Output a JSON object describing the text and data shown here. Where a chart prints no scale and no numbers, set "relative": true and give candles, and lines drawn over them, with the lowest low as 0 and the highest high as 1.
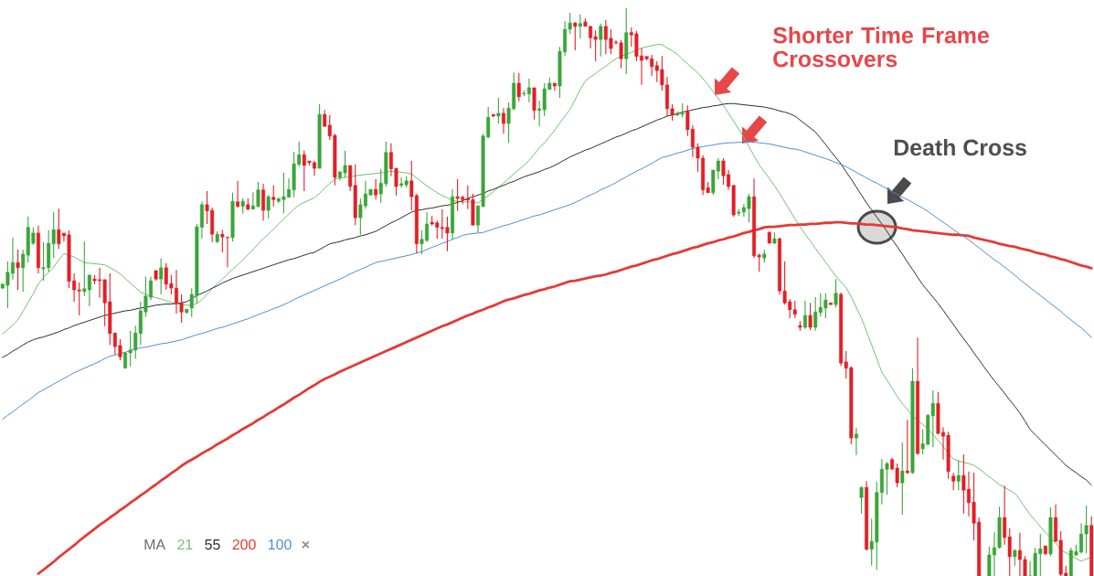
{
  "chart_data": {
    "type": "candlestick",
    "relative": true,
    "legend_title": "MA",
    "marker": "none",
    "line_style": "solid",
    "annotations": [
      "Shorter Time Frame Crossovers",
      "Death Cross",
      "×"
    ],
    "categories": [
      null,
      null,
      null,
      null,
      null,
      null,
      null,
      null,
      null,
      null,
      null,
      null,
      null,
      null,
      null,
      null,
      null,
      null,
      null,
      null,
      null,
      null,
      null,
      null,
      null,
      null,
      null,
      null,
      null,
      null,
      null,
      null,
      null,
      null,
      null,
      null,
      null,
      null,
      null,
      null,
      null,
      null,
      null,
      null,
      null,
      null,
      null,
      null,
      null,
      null,
      null,
      null,
      null,
      null,
      null,
      null,
      null,
      null,
      null,
      null,
      null,
      null,
      null,
      null,
      null,
      null,
      null,
      null,
      null,
      null,
      null,
      null,
      null,
      null,
      null,
      null,
      null,
      null,
      null,
      null,
      null,
      null,
      null,
      null,
      null,
      null,
      null,
      null,
      null,
      null,
      null,
      null,
      null,
      null,
      null,
      null,
      null,
      null,
      null,
      null,
      null,
      null,
      null,
      null,
      null,
      null,
      null,
      null,
      null,
      null,
      null,
      null,
      null,
      null,
      null,
      null,
      null,
      null,
      null,
      null,
      null,
      null,
      null,
      null,
      null,
      null,
      null,
      null,
      null,
      null,
      null,
      null,
      null,
      null,
      null,
      null,
      null,
      null,
      null,
      null,
      null,
      null,
      null,
      null,
      null,
      null,
      null,
      null,
      null,
      null,
      null,
      null,
      null,
      null,
      null,
      null,
      null,
      null,
      null,
      null,
      null,
      null,
      null,
      null,
      null,
      null,
      null,
      null,
      null,
      null,
      null,
      null,
      null,
      null,
      null,
      null,
      null,
      null,
      null,
      null,
      null,
      null,
      null,
      null,
      null,
      null,
      null,
      null,
      null,
      null,
      null,
      null,
      null,
      null,
      null,
      null,
      null,
      null,
      null,
      null,
      null,
      null,
      null,
      null,
      null,
      null,
      null,
      null,
      null,
      null,
      null,
      null,
      null,
      null
    ],
    "ohlc": [
      [
        0.507,
        0.515,
        0.506,
        0.514
      ],
      [
        0.512,
        0.554,
        0.472,
        0.535
      ],
      [
        0.533,
        0.596,
        0.522,
        0.552
      ],
      [
        0.552,
        0.575,
        0.504,
        0.543
      ],
      [
        0.543,
        0.575,
        0.501,
        0.567
      ],
      [
        0.565,
        0.633,
        0.552,
        0.614
      ],
      [
        0.586,
        0.614,
        0.583,
        0.604
      ],
      [
        0.604,
        0.617,
        0.533,
        0.543
      ],
      [
        0.541,
        0.588,
        0.52,
        0.543
      ],
      [
        0.543,
        0.609,
        0.536,
        0.586
      ],
      [
        0.585,
        0.641,
        0.56,
        0.61
      ],
      [
        0.61,
        0.647,
        0.576,
        0.585
      ],
      [
        0.604,
        0.604,
        0.589,
        0.599
      ],
      [
        0.601,
        0.609,
        0.507,
        0.519
      ],
      [
        0.52,
        0.533,
        0.483,
        0.504
      ],
      [
        0.504,
        0.517,
        0.459,
        0.502
      ],
      [
        0.501,
        0.589,
        0.493,
        0.506
      ],
      [
        0.504,
        0.53,
        0.475,
        0.53
      ],
      [
        0.523,
        0.53,
        0.514,
        0.52
      ],
      [
        0.522,
        0.543,
        0.49,
        0.52
      ],
      [
        0.522,
        0.522,
        0.44,
        0.481
      ],
      [
        0.483,
        0.533,
        0.407,
        0.427
      ],
      [
        0.428,
        0.428,
        0.39,
        0.404
      ],
      [
        0.406,
        0.417,
        0.38,
        0.386
      ],
      [
        0.366,
        0.393,
        0.366,
        0.393
      ],
      [
        0.393,
        0.432,
        0.369,
        0.398
      ],
      [
        0.398,
        0.441,
        0.383,
        0.428
      ],
      [
        0.427,
        0.483,
        0.407,
        0.467
      ],
      [
        0.465,
        0.527,
        0.456,
        0.493
      ],
      [
        0.491,
        0.527,
        0.486,
        0.52
      ],
      [
        0.538,
        0.538,
        0.52,
        0.523
      ],
      [
        0.523,
        0.559,
        0.496,
        0.543
      ],
      [
        0.543,
        0.551,
        0.504,
        0.514
      ],
      [
        0.515,
        0.53,
        0.496,
        0.507
      ],
      [
        0.507,
        0.539,
        0.462,
        0.481
      ],
      [
        0.481,
        0.496,
        0.446,
        0.465
      ],
      [
        0.464,
        0.47,
        0.462,
        0.47
      ],
      [
        0.472,
        0.507,
        0.456,
        0.496
      ],
      [
        0.494,
        0.62,
        0.48,
        0.615
      ],
      [
        0.614,
        0.66,
        0.594,
        0.654
      ],
      [
        0.654,
        0.678,
        0.62,
        0.643
      ],
      [
        0.644,
        0.649,
        0.588,
        0.602
      ],
      [
        0.589,
        0.607,
        0.586,
        0.602
      ],
      [
        0.602,
        0.61,
        0.57,
        0.597
      ],
      [
        0.597,
        0.597,
        0.544,
        0.596
      ],
      [
        0.596,
        0.675,
        0.589,
        0.66
      ],
      [
        0.659,
        0.696,
        0.649,
        0.651
      ],
      [
        0.651,
        0.665,
        0.638,
        0.66
      ],
      [
        0.654,
        0.665,
        0.644,
        0.646
      ],
      [
        0.646,
        0.676,
        0.646,
        0.652
      ],
      [
        0.651,
        0.694,
        0.649,
        0.68
      ],
      [
        0.68,
        0.691,
        0.626,
        0.644
      ],
      [
        0.644,
        0.671,
        0.63,
        0.668
      ],
      [
        0.667,
        0.688,
        0.651,
        0.663
      ],
      [
        0.66,
        0.665,
        0.657,
        0.665
      ],
      [
        0.663,
        0.71,
        0.639,
        0.668
      ],
      [
        0.667,
        0.7,
        0.667,
        0.681
      ],
      [
        0.68,
        0.747,
        0.667,
        0.726
      ],
      [
        0.725,
        0.765,
        0.721,
        0.742
      ],
      [
        0.742,
        0.749,
        0.678,
        0.723
      ],
      [
        0.731,
        0.731,
        0.723,
        0.728
      ],
      [
        0.728,
        0.731,
        0.705,
        0.718
      ],
      [
        0.718,
        0.831,
        0.718,
        0.813
      ],
      [
        0.813,
        0.821,
        0.791,
        0.792
      ],
      [
        0.794,
        0.812,
        0.768,
        0.775
      ],
      [
        0.776,
        0.779,
        0.688,
        0.702
      ],
      [
        0.702,
        0.712,
        0.697,
        0.712
      ],
      [
        0.71,
        0.749,
        0.702,
        0.723
      ],
      [
        0.723,
        0.723,
        0.678,
        0.686
      ],
      [
        0.688,
        0.725,
        0.618,
        0.631
      ],
      [
        0.631,
        0.665,
        0.601,
        0.654
      ],
      [
        0.652,
        0.696,
        0.647,
        0.673
      ],
      [
        0.671,
        0.681,
        0.671,
        0.681
      ],
      [
        0.681,
        0.699,
        0.663,
        0.671
      ],
      [
        0.673,
        0.717,
        0.657,
        0.692
      ],
      [
        0.691,
        0.765,
        0.686,
        0.746
      ],
      [
        0.746,
        0.762,
        0.704,
        0.717
      ],
      [
        0.718,
        0.718,
        0.67,
        0.686
      ],
      [
        0.688,
        0.702,
        0.684,
        0.691
      ],
      [
        0.689,
        0.704,
        0.684,
        0.696
      ],
      [
        0.696,
        0.731,
        0.644,
        0.668
      ],
      [
        0.67,
        0.673,
        0.568,
        0.585
      ],
      [
        0.585,
        0.609,
        0.567,
        0.593
      ],
      [
        0.591,
        0.641,
        0.588,
        0.62
      ],
      [
        0.623,
        0.634,
        0.617,
        0.62
      ],
      [
        0.622,
        0.626,
        0.594,
        0.614
      ],
      [
        0.614,
        0.646,
        0.594,
        0.612
      ],
      [
        0.614,
        0.633,
        0.572,
        0.604
      ],
      [
        0.604,
        0.681,
        0.593,
        0.668
      ],
      [
        0.668,
        0.699,
        0.643,
        0.665
      ],
      [
        0.667,
        0.67,
        0.655,
        0.663
      ],
      [
        0.665,
        0.688,
        0.646,
        0.662
      ],
      [
        0.663,
        0.673,
        0.617,
        0.618
      ],
      [
        0.618,
        0.652,
        0.605,
        0.652
      ],
      [
        0.651,
        0.779,
        0.649,
        0.775
      ],
      [
        0.773,
        0.826,
        0.771,
        0.808
      ],
      [
        0.813,
        0.813,
        0.808,
        0.81
      ],
      [
        0.81,
        0.842,
        0.797,
        0.815
      ],
      [
        0.815,
        0.824,
        0.779,
        0.797
      ],
      [
        0.797,
        0.834,
        0.763,
        0.824
      ],
      [
        0.823,
        0.887,
        0.82,
        0.868
      ],
      [
        0.868,
        0.886,
        0.836,
        0.844
      ],
      [
        0.849,
        0.855,
        0.845,
        0.85
      ],
      [
        0.849,
        0.876,
        0.834,
        0.86
      ],
      [
        0.86,
        0.86,
        0.804,
        0.82
      ],
      [
        0.82,
        0.837,
        0.792,
        0.823
      ],
      [
        0.821,
        0.868,
        0.81,
        0.858
      ],
      [
        0.857,
        0.878,
        0.857,
        0.868
      ],
      [
        0.868,
        0.868,
        0.855,
        0.863
      ],
      [
        0.863,
        0.932,
        0.842,
        0.924
      ],
      [
        0.923,
        0.977,
        0.916,
        0.963
      ],
      [
        0.963,
        0.992,
        0.955,
        0.974
      ],
      [
        0.974,
        0.976,
        0.926,
        0.968
      ],
      [
        0.968,
        0.989,
        0.947,
        0.973
      ],
      [
        0.976,
        0.982,
        0.968,
        0.968
      ],
      [
        0.968,
        0.969,
        0.929,
        0.948
      ],
      [
        0.95,
        0.961,
        0.907,
        0.945
      ],
      [
        0.945,
        0.973,
        0.915,
        0.968
      ],
      [
        0.968,
        0.979,
        0.919,
        0.945
      ],
      [
        0.947,
        0.963,
        0.919,
        0.929
      ],
      [
        0.94,
        0.944,
        0.936,
        0.939
      ],
      [
        0.939,
        0.944,
        0.894,
        0.911
      ],
      [
        0.911,
        1,
        0.884,
        0.957
      ],
      [
        0.957,
        0.966,
        0.932,
        0.953
      ],
      [
        0.955,
        0.96,
        0.907,
        0.915
      ],
      [
        0.916,
        0.929,
        0.865,
        0.908
      ],
      [
        0.915,
        0.915,
        0.908,
        0.911
      ],
      [
        0.911,
        0.918,
        0.881,
        0.897
      ],
      [
        0.899,
        0.907,
        0.87,
        0.89
      ],
      [
        0.892,
        0.916,
        0.855,
        0.865
      ],
      [
        0.865,
        0.879,
        0.81,
        0.823
      ],
      [
        0.823,
        0.831,
        0.802,
        0.812
      ],
      [
        0.812,
        0.818,
        0.81,
        0.815
      ],
      [
        0.813,
        0.833,
        0.808,
        0.815
      ],
      [
        0.818,
        0.829,
        0.775,
        0.786
      ],
      [
        0.787,
        0.794,
        0.738,
        0.755
      ],
      [
        0.755,
        0.762,
        0.712,
        0.736
      ],
      [
        0.736,
        0.741,
        0.671,
        0.68
      ],
      [
        0.684,
        0.694,
        0.675,
        0.675
      ],
      [
        0.675,
        0.715,
        0.671,
        0.715
      ],
      [
        0.713,
        0.736,
        0.699,
        0.731
      ],
      [
        0.731,
        0.736,
        0.689,
        0.705
      ],
      [
        0.707,
        0.715,
        0.68,
        0.686
      ],
      [
        0.688,
        0.688,
        0.633,
        0.636
      ],
      [
        0.639,
        0.646,
        0.634,
        0.641
      ],
      [
        0.641,
        0.655,
        0.633,
        0.649
      ],
      [
        0.647,
        0.673,
        0.623,
        0.668
      ],
      [
        0.668,
        0.7,
        0.56,
        0.564
      ],
      [
        0.565,
        0.568,
        0.536,
        0.562
      ],
      [
        0.56,
        0.575,
        0.552,
        0.567
      ],
      [
        0.605,
        0.607,
        0.586,
        0.586
      ],
      [
        0.586,
        0.605,
        0.585,
        0.594
      ],
      [
        0.594,
        0.596,
        0.496,
        0.502
      ],
      [
        0.502,
        0.554,
        0.478,
        0.481
      ],
      [
        0.483,
        0.488,
        0.454,
        0.469
      ],
      [
        0.469,
        0.485,
        0.454,
        0.461
      ],
      [
        0.441,
        0.449,
        0.432,
        0.438
      ],
      [
        0.438,
        0.485,
        0.435,
        0.459
      ],
      [
        0.459,
        0.481,
        0.433,
        0.438
      ],
      [
        0.438,
        0.491,
        0.432,
        0.465
      ],
      [
        0.464,
        0.498,
        0.457,
        0.473
      ],
      [
        0.472,
        0.498,
        0.454,
        0.486
      ],
      [
        0.481,
        0.481,
        0.478,
        0.478
      ],
      [
        0.478,
        0.523,
        0.473,
        0.498
      ],
      [
        0.496,
        0.499,
        0.37,
        0.375
      ],
      [
        0.377,
        0.396,
        0.348,
        0.366
      ],
      [
        0.367,
        0.369,
        0.232,
        0.243
      ],
      [
        0.243,
        0.261,
        0.213,
        0.25
      ],
      [
        0.138,
        0.158,
        0.11,
        0.156
      ],
      [
        0.156,
        0.167,
        0.045,
        0.047
      ],
      [
        0.047,
        0.101,
        0.018,
        0.061
      ],
      [
        0.06,
        0.166,
        0.011,
        0.147
      ],
      [
        0.147,
        0.206,
        0.126,
        0.188
      ],
      [
        0.188,
        0.201,
        0.143,
        0.198
      ],
      [
        0.205,
        0.208,
        0.188,
        0.188
      ],
      [
        0.19,
        0.198,
        0.156,
        0.164
      ],
      [
        0.164,
        0.235,
        0.108,
        0.185
      ],
      [
        0.185,
        0.275,
        0.18,
        0.182
      ],
      [
        0.182,
        0.366,
        0.18,
        0.343
      ],
      [
        0.343,
        0.42,
        0.213,
        0.216
      ],
      [
        0.224,
        0.258,
        0.214,
        0.233
      ],
      [
        0.232,
        0.285,
        0.23,
        0.283
      ],
      [
        0.282,
        0.327,
        0.227,
        0.304
      ],
      [
        0.304,
        0.324,
        0.25,
        0.251
      ],
      [
        0.253,
        0.262,
        0.205,
        0.246
      ],
      [
        0.248,
        0.254,
        0.171,
        0.184
      ],
      [
        0.176,
        0.182,
        0.151,
        0.167
      ],
      [
        0.167,
        0.203,
        0.151,
        0.177
      ],
      [
        0.177,
        0.214,
        0.11,
        0.151
      ],
      [
        0.153,
        0.184,
        0.105,
        0.129
      ],
      [
        0.13,
        0.182,
        0.063,
        0.093
      ],
      [
        0.095,
        0.103,
        0,
        0
      ],
      null,
      [
        0,
        0.052,
        0,
        0.037
      ],
      [
        0.037,
        0.077,
        0,
        0.05
      ],
      [
        0.05,
        0.122,
        0.048,
        0.103
      ],
      [
        0.103,
        0.159,
        0.055,
        0.068
      ],
      [
        0.069,
        0.084,
        0,
        0.034
      ],
      [
        0.034,
        0.047,
        0.018,
        0.045
      ],
      [
        0.045,
        0.076,
        0,
        0.029
      ],
      [
        0.029,
        0.035,
        0,
        0
      ],
      [
        0,
        0.026,
        0,
        0
      ],
      [
        0,
        0.05,
        0,
        0.04
      ],
      [
        0.039,
        0.074,
        0,
        0.048
      ],
      [
        0.053,
        0.053,
        0.037,
        0.039
      ],
      [
        0.039,
        0.121,
        0.035,
        0.103
      ],
      [
        0.103,
        0.126,
        0.06,
        0.061
      ],
      [
        0.063,
        0.079,
        0,
        0.003
      ],
      [
        0.005,
        0.018,
        0,
        0
      ],
      [
        0,
        0.05,
        0,
        0.045
      ],
      [
        0.037,
        0.055,
        0.035,
        0.043
      ],
      [
        0.042,
        0.093,
        0.04,
        0.074
      ],
      [
        0.074,
        0.124,
        0.04,
        0.089
      ],
      [
        0.089,
        0.105,
        0,
        0
      ]
    ],
    "colors": [
      "#3aa53a",
      "#3aa53a",
      "#3aa53a",
      "#e21f26",
      "#3aa53a",
      "#3aa53a",
      "#3aa53a",
      "#e21f26",
      "#3aa53a",
      "#3aa53a",
      "#3aa53a",
      "#e21f26",
      "#e21f26",
      "#e21f26",
      "#e21f26",
      "#e21f26",
      "#3aa53a",
      "#3aa53a",
      "#e21f26",
      "#e21f26",
      "#e21f26",
      "#e21f26",
      "#e21f26",
      "#e21f26",
      "#3aa53a",
      "#3aa53a",
      "#3aa53a",
      "#3aa53a",
      "#3aa53a",
      "#3aa53a",
      "#e21f26",
      "#3aa53a",
      "#e21f26",
      "#e21f26",
      "#e21f26",
      "#e21f26",
      "#3aa53a",
      "#3aa53a",
      "#3aa53a",
      "#3aa53a",
      "#e21f26",
      "#e21f26",
      "#3aa53a",
      "#e21f26",
      "#e21f26",
      "#3aa53a",
      "#e21f26",
      "#3aa53a",
      "#e21f26",
      "#3aa53a",
      "#3aa53a",
      "#e21f26",
      "#3aa53a",
      "#e21f26",
      "#3aa53a",
      "#3aa53a",
      "#3aa53a",
      "#3aa53a",
      "#3aa53a",
      "#e21f26",
      "#e21f26",
      "#e21f26",
      "#3aa53a",
      "#e21f26",
      "#e21f26",
      "#e21f26",
      "#3aa53a",
      "#3aa53a",
      "#e21f26",
      "#e21f26",
      "#3aa53a",
      "#3aa53a",
      "#3aa53a",
      "#e21f26",
      "#3aa53a",
      "#3aa53a",
      "#e21f26",
      "#e21f26",
      "#3aa53a",
      "#3aa53a",
      "#e21f26",
      "#e21f26",
      "#3aa53a",
      "#3aa53a",
      "#e21f26",
      "#e21f26",
      "#e21f26",
      "#e21f26",
      "#3aa53a",
      "#e21f26",
      "#e21f26",
      "#e21f26",
      "#e21f26",
      "#3aa53a",
      "#3aa53a",
      "#3aa53a",
      "#e21f26",
      "#3aa53a",
      "#e21f26",
      "#3aa53a",
      "#3aa53a",
      "#e21f26",
      "#3aa53a",
      "#3aa53a",
      "#e21f26",
      "#3aa53a",
      "#3aa53a",
      "#3aa53a",
      "#e21f26",
      "#3aa53a",
      "#3aa53a",
      "#3aa53a",
      "#e21f26",
      "#3aa53a",
      "#e21f26",
      "#e21f26",
      "#e21f26",
      "#3aa53a",
      "#e21f26",
      "#e21f26",
      "#e21f26",
      "#e21f26",
      "#3aa53a",
      "#e21f26",
      "#e21f26",
      "#e21f26",
      "#e21f26",
      "#e21f26",
      "#e21f26",
      "#e21f26",
      "#e21f26",
      "#e21f26",
      "#3aa53a",
      "#3aa53a",
      "#e21f26",
      "#e21f26",
      "#e21f26",
      "#e21f26",
      "#e21f26",
      "#3aa53a",
      "#3aa53a",
      "#e21f26",
      "#e21f26",
      "#e21f26",
      "#3aa53a",
      "#3aa53a",
      "#3aa53a",
      "#e21f26",
      "#e21f26",
      "#3aa53a",
      "#e21f26",
      "#3aa53a",
      "#e21f26",
      "#e21f26",
      "#e21f26",
      "#e21f26",
      "#e21f26",
      "#3aa53a",
      "#e21f26",
      "#3aa53a",
      "#3aa53a",
      "#3aa53a",
      "#e21f26",
      "#3aa53a",
      "#e21f26",
      "#e21f26",
      "#e21f26",
      "#3aa53a",
      "#3aa53a",
      "#e21f26",
      "#3aa53a",
      "#3aa53a",
      "#3aa53a",
      "#3aa53a",
      "#e21f26",
      "#e21f26",
      "#3aa53a",
      "#e21f26",
      "#3aa53a",
      "#e21f26",
      "#3aa53a",
      "#3aa53a",
      "#3aa53a",
      "#e21f26",
      "#e21f26",
      "#e21f26",
      "#e21f26",
      "#3aa53a",
      "#e21f26",
      "#e21f26",
      "#e21f26",
      "#e21f26",
      null,
      "#3aa53a",
      "#3aa53a",
      "#3aa53a",
      "#e21f26",
      "#e21f26",
      "#3aa53a",
      "#e21f26",
      "#e21f26",
      "#3aa53a",
      "#3aa53a",
      "#3aa53a",
      "#e21f26",
      "#3aa53a",
      "#e21f26",
      "#e21f26",
      "#e21f26",
      "#3aa53a",
      "#3aa53a",
      "#3aa53a",
      "#3aa53a",
      "#e21f26"
    ],
    "series": [
      {
        "name": "21",
        "type": "line",
        "color": "#6fc26f",
        "values": [
          0.426,
          0.434,
          0.442,
          0.451,
          0.466,
          0.482,
          0.497,
          0.514,
          0.526,
          0.535,
          0.544,
          0.557,
          0.568,
          0.565,
          0.562,
          0.557,
          0.552,
          0.551,
          0.55,
          0.549,
          0.548,
          0.543,
          0.538,
          0.532,
          0.524,
          0.516,
          0.508,
          0.5,
          0.496,
          0.493,
          0.49,
          0.488,
          0.485,
          0.482,
          0.479,
          0.478,
          0.477,
          0.477,
          0.48,
          0.487,
          0.496,
          0.506,
          0.515,
          0.523,
          0.532,
          0.54,
          0.548,
          0.557,
          0.566,
          0.575,
          0.585,
          0.594,
          0.602,
          0.611,
          0.62,
          0.629,
          0.637,
          0.646,
          0.654,
          0.658,
          0.662,
          0.666,
          0.674,
          0.683,
          0.691,
          0.699,
          0.701,
          0.702,
          0.703,
          0.705,
          0.706,
          0.707,
          0.708,
          0.709,
          0.71,
          0.711,
          0.713,
          0.712,
          0.711,
          0.71,
          0.708,
          0.701,
          0.694,
          0.687,
          0.681,
          0.675,
          0.67,
          0.666,
          0.661,
          0.66,
          0.659,
          0.659,
          0.658,
          0.657,
          0.664,
          0.67,
          0.677,
          0.684,
          0.692,
          0.7,
          0.708,
          0.716,
          0.723,
          0.732,
          0.743,
          0.754,
          0.763,
          0.774,
          0.785,
          0.798,
          0.81,
          0.822,
          0.839,
          0.857,
          0.872,
          0.879,
          0.885,
          0.892,
          0.898,
          0.905,
          0.911,
          0.915,
          0.919,
          0.922,
          0.926,
          0.93,
          0.932,
          0.934,
          0.936,
          0.936,
          0.93,
          0.925,
          0.919,
          0.91,
          0.902,
          0.894,
          0.886,
          0.876,
          0.865,
          0.853,
          0.841,
          0.829,
          0.815,
          0.801,
          0.787,
          0.773,
          0.756,
          0.74,
          0.724,
          0.712,
          0.7,
          0.687,
          0.674,
          0.659,
          0.644,
          0.629,
          0.615,
          0.602,
          0.59,
          0.577,
          0.565,
          0.553,
          0.54,
          0.528,
          0.518,
          0.508,
          0.492,
          0.473,
          0.454,
          0.431,
          0.407,
          0.383,
          0.359,
          0.345,
          0.331,
          0.316,
          0.304,
          0.293,
          0.282,
          0.274,
          0.267,
          0.259,
          0.249,
          0.239,
          0.228,
          0.217,
          0.206,
          0.203,
          0.2,
          0.198,
          0.195,
          0.189,
          0.182,
          0.175,
          0.168,
          0.161,
          0.156,
          0.151,
          0.146,
          0.134,
          0.121,
          0.108,
          0.098,
          0.087,
          0.077,
          0.067,
          0.058,
          0.046,
          0.041,
          0.036,
          0.031,
          0.026,
          0.03,
          0.033
        ]
      },
      {
        "name": "55",
        "type": "line",
        "color": "#2e2e2e",
        "values": [
          0.385,
          0.39,
          0.396,
          0.401,
          0.407,
          0.412,
          0.416,
          0.419,
          0.421,
          0.424,
          0.427,
          0.43,
          0.434,
          0.437,
          0.441,
          0.444,
          0.447,
          0.45,
          0.453,
          0.456,
          0.459,
          0.461,
          0.463,
          0.465,
          0.467,
          0.468,
          0.47,
          0.472,
          0.473,
          0.475,
          0.477,
          0.478,
          0.479,
          0.479,
          0.48,
          0.481,
          0.483,
          0.488,
          0.494,
          0.498,
          0.502,
          0.507,
          0.511,
          0.516,
          0.52,
          0.524,
          0.527,
          0.53,
          0.533,
          0.536,
          0.539,
          0.542,
          0.545,
          0.548,
          0.551,
          0.554,
          0.557,
          0.559,
          0.562,
          0.565,
          0.568,
          0.57,
          0.575,
          0.58,
          0.585,
          0.587,
          0.589,
          0.592,
          0.594,
          0.596,
          0.599,
          0.601,
          0.604,
          0.607,
          0.612,
          0.617,
          0.622,
          0.626,
          0.631,
          0.636,
          0.641,
          0.644,
          0.645,
          0.647,
          0.648,
          0.65,
          0.652,
          0.653,
          0.655,
          0.658,
          0.661,
          0.665,
          0.668,
          0.671,
          0.674,
          0.678,
          0.681,
          0.685,
          0.688,
          0.692,
          0.695,
          0.699,
          0.703,
          0.706,
          0.709,
          0.712,
          0.716,
          0.719,
          0.723,
          0.728,
          0.733,
          0.738,
          0.742,
          0.746,
          0.75,
          0.753,
          0.757,
          0.761,
          0.765,
          0.769,
          0.773,
          0.776,
          0.78,
          0.784,
          0.787,
          0.791,
          0.795,
          0.799,
          0.803,
          0.806,
          0.81,
          0.812,
          0.814,
          0.817,
          0.819,
          0.821,
          0.823,
          0.825,
          0.826,
          0.828,
          0.829,
          0.831,
          0.832,
          0.832,
          0.831,
          0.83,
          0.829,
          0.828,
          0.827,
          0.826,
          0.824,
          0.822,
          0.819,
          0.817,
          0.814,
          0.81,
          0.803,
          0.796,
          0.789,
          0.782,
          0.771,
          0.76,
          0.748,
          0.737,
          0.726,
          0.712,
          0.699,
          0.685,
          0.671,
          0.657,
          0.645,
          0.632,
          0.62,
          0.607,
          0.593,
          0.58,
          0.567,
          0.553,
          0.54,
          0.526,
          0.513,
          0.502,
          0.491,
          0.48,
          0.468,
          0.455,
          0.443,
          0.43,
          0.418,
          0.406,
          0.393,
          0.381,
          0.368,
          0.356,
          0.344,
          0.333,
          0.322,
          0.31,
          0.299,
          0.287,
          0.273,
          0.258,
          0.249,
          0.24,
          0.231,
          0.222,
          0.213,
          0.204,
          0.195,
          0.188,
          0.182,
          0.175,
          0.169,
          0.16
        ]
      },
      {
        "name": "200",
        "type": "line",
        "color": "#e53935",
        "values": [
          null,
          null,
          null,
          null,
          null,
          null,
          null,
          0.004,
          0.011,
          0.018,
          0.025,
          0.033,
          0.04,
          0.047,
          0.054,
          0.062,
          0.069,
          0.076,
          0.083,
          0.09,
          0.096,
          0.103,
          0.109,
          0.116,
          0.122,
          0.129,
          0.135,
          0.142,
          0.148,
          0.155,
          0.161,
          0.168,
          0.174,
          0.181,
          0.187,
          0.194,
          0.2,
          0.205,
          0.21,
          0.216,
          0.221,
          0.226,
          0.232,
          0.237,
          0.242,
          0.248,
          0.253,
          0.259,
          0.264,
          0.269,
          0.275,
          0.28,
          0.286,
          0.291,
          0.297,
          0.302,
          0.308,
          0.314,
          0.319,
          0.325,
          0.331,
          0.336,
          0.342,
          0.347,
          0.351,
          0.355,
          0.36,
          0.364,
          0.368,
          0.372,
          0.376,
          0.38,
          0.384,
          0.388,
          0.392,
          0.396,
          0.4,
          0.404,
          0.408,
          0.412,
          0.416,
          0.42,
          0.424,
          0.428,
          0.432,
          0.436,
          0.44,
          0.443,
          0.447,
          0.451,
          0.455,
          0.459,
          0.462,
          0.466,
          0.469,
          0.473,
          0.476,
          0.48,
          0.484,
          0.487,
          0.489,
          0.492,
          0.495,
          0.497,
          0.5,
          0.503,
          0.505,
          0.508,
          0.51,
          0.513,
          0.516,
          0.519,
          0.52,
          0.522,
          0.524,
          0.526,
          0.528,
          0.529,
          0.531,
          0.534,
          0.536,
          0.539,
          0.542,
          0.545,
          0.547,
          0.55,
          0.553,
          0.556,
          0.558,
          0.561,
          0.564,
          0.567,
          0.569,
          0.572,
          0.575,
          0.578,
          0.58,
          0.583,
          0.586,
          0.588,
          0.591,
          0.593,
          0.596,
          0.598,
          0.601,
          0.604,
          0.606,
          0.609,
          0.611,
          0.614,
          0.615,
          0.615,
          0.616,
          0.617,
          0.618,
          0.618,
          0.619,
          0.619,
          0.62,
          0.62,
          0.621,
          0.622,
          0.622,
          0.623,
          0.623,
          0.622,
          0.621,
          0.621,
          0.62,
          0.619,
          0.619,
          0.618,
          0.617,
          0.616,
          0.615,
          0.614,
          0.612,
          0.611,
          0.609,
          0.608,
          0.607,
          0.606,
          0.605,
          0.604,
          0.603,
          0.602,
          0.601,
          0.601,
          0.6,
          0.599,
          0.596,
          0.594,
          0.592,
          0.59,
          0.588,
          0.585,
          0.583,
          0.581,
          0.58,
          0.577,
          0.575,
          0.573,
          0.57,
          0.568,
          0.566,
          0.563,
          0.561,
          0.558,
          0.556,
          0.553,
          0.55,
          0.547,
          0.545,
          0.542
        ]
      },
      {
        "name": "100",
        "type": "line",
        "color": "#4b8fd8",
        "values": [
          0.276,
          0.283,
          0.289,
          0.296,
          0.303,
          0.309,
          0.316,
          0.323,
          0.328,
          0.333,
          0.338,
          0.343,
          0.348,
          0.353,
          0.358,
          0.362,
          0.366,
          0.37,
          0.374,
          0.378,
          0.383,
          0.387,
          0.389,
          0.392,
          0.394,
          0.397,
          0.4,
          0.402,
          0.403,
          0.405,
          0.407,
          0.409,
          0.41,
          0.412,
          0.414,
          0.416,
          0.419,
          0.422,
          0.425,
          0.427,
          0.43,
          0.433,
          0.436,
          0.438,
          0.441,
          0.444,
          0.447,
          0.45,
          0.453,
          0.457,
          0.46,
          0.464,
          0.467,
          0.471,
          0.474,
          0.478,
          0.482,
          0.487,
          0.491,
          0.495,
          0.499,
          0.503,
          0.507,
          0.511,
          0.515,
          0.519,
          0.523,
          0.527,
          0.532,
          0.536,
          0.54,
          0.544,
          0.548,
          0.552,
          0.554,
          0.556,
          0.558,
          0.56,
          0.562,
          0.564,
          0.566,
          0.569,
          0.571,
          0.575,
          0.579,
          0.582,
          0.586,
          0.589,
          0.593,
          0.596,
          0.6,
          0.602,
          0.603,
          0.604,
          0.605,
          0.608,
          0.611,
          0.614,
          0.617,
          0.619,
          0.622,
          0.625,
          0.628,
          0.631,
          0.634,
          0.636,
          0.639,
          0.642,
          0.645,
          0.648,
          0.651,
          0.654,
          0.658,
          0.662,
          0.667,
          0.671,
          0.675,
          0.68,
          0.684,
          0.688,
          0.693,
          0.698,
          0.703,
          0.708,
          0.713,
          0.717,
          0.722,
          0.727,
          0.732,
          0.737,
          0.739,
          0.742,
          0.745,
          0.747,
          0.75,
          0.753,
          0.755,
          0.756,
          0.758,
          0.759,
          0.761,
          0.762,
          0.763,
          0.763,
          0.764,
          0.764,
          0.765,
          0.764,
          0.763,
          0.762,
          0.761,
          0.759,
          0.757,
          0.755,
          0.753,
          0.752,
          0.75,
          0.747,
          0.744,
          0.741,
          0.738,
          0.735,
          0.732,
          0.728,
          0.725,
          0.721,
          0.716,
          0.711,
          0.706,
          0.701,
          0.696,
          0.692,
          0.687,
          0.682,
          0.677,
          0.672,
          0.667,
          0.663,
          0.658,
          0.653,
          0.648,
          0.642,
          0.636,
          0.629,
          0.623,
          0.617,
          0.61,
          0.604,
          0.598,
          0.592,
          0.585,
          0.578,
          0.571,
          0.564,
          0.557,
          0.551,
          0.544,
          0.537,
          0.53,
          0.522,
          0.515,
          0.508,
          0.501,
          0.494,
          0.487,
          0.48,
          0.473,
          0.466,
          0.458,
          0.451,
          0.444,
          0.437,
          0.429,
          0.42
        ]
      }
    ]
  }
}
